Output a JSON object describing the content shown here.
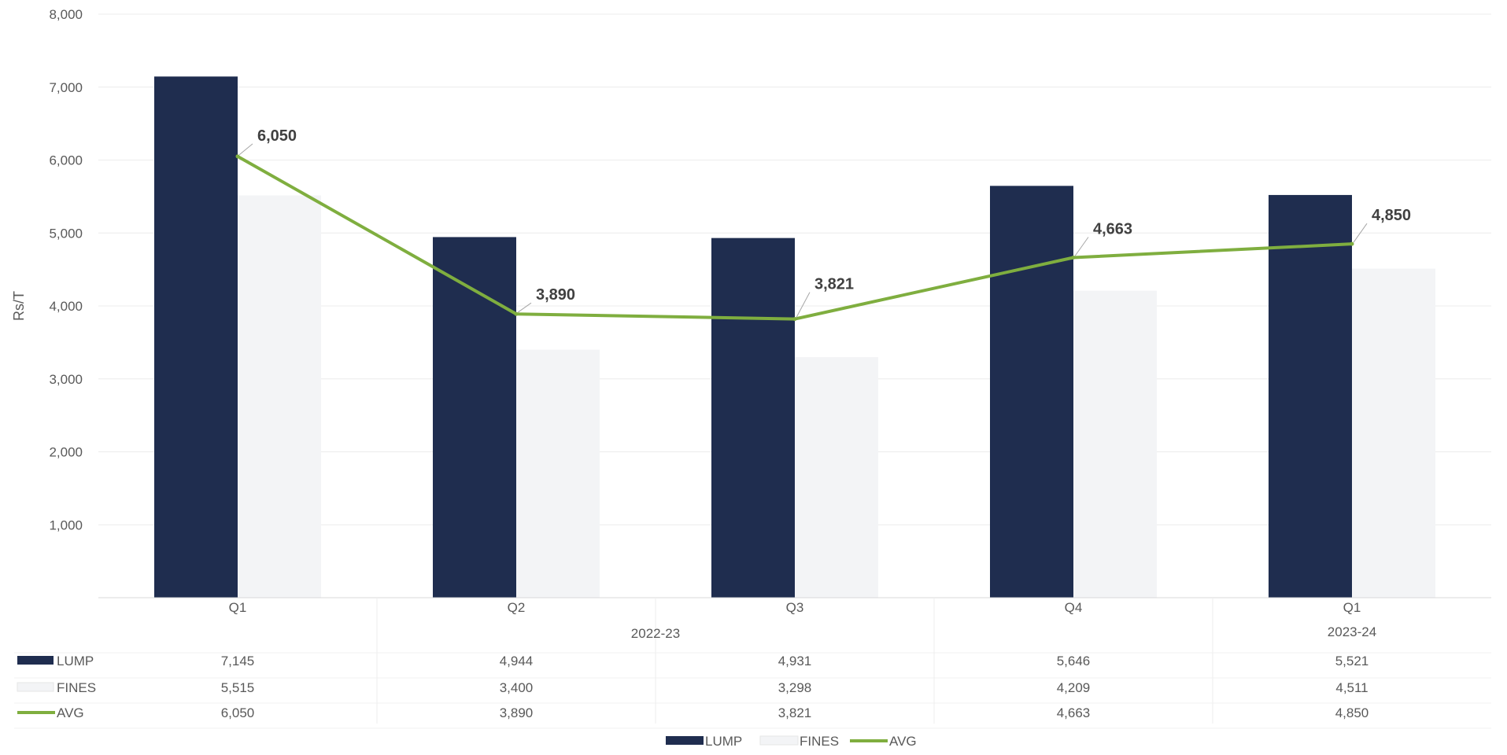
{
  "chart_data": {
    "type": "bar",
    "ylabel": "Rs/T",
    "ylim": [
      0,
      8000
    ],
    "yticks": [
      "1,000",
      "2,000",
      "3,000",
      "4,000",
      "5,000",
      "6,000",
      "7,000",
      "8,000"
    ],
    "categories": [
      "Q1",
      "Q2",
      "Q3",
      "Q4",
      "Q1"
    ],
    "groups": [
      {
        "label": "2022-23",
        "categories": [
          "Q1",
          "Q2",
          "Q3",
          "Q4"
        ]
      },
      {
        "label": "2023-24",
        "categories": [
          "Q1"
        ]
      }
    ],
    "series": [
      {
        "name": "LUMP",
        "type": "bar",
        "color": "#1f2d4f",
        "values": [
          7145,
          4944,
          4931,
          5646,
          5521
        ],
        "display": [
          "7,145",
          "4,944",
          "4,931",
          "5,646",
          "5,521"
        ]
      },
      {
        "name": "FINES",
        "type": "bar",
        "color": "#f3f4f6",
        "values": [
          5515,
          3400,
          3298,
          4209,
          4511
        ],
        "display": [
          "5,515",
          "3,400",
          "3,298",
          "4,209",
          "4,511"
        ]
      },
      {
        "name": "AVG",
        "type": "line",
        "color": "#7fae3f",
        "values": [
          6050,
          3890,
          3821,
          4663,
          4850
        ],
        "display": [
          "6,050",
          "3,890",
          "3,821",
          "4,663",
          "4,850"
        ]
      }
    ],
    "data_table": true,
    "grid": true,
    "legend_position": "bottom"
  }
}
